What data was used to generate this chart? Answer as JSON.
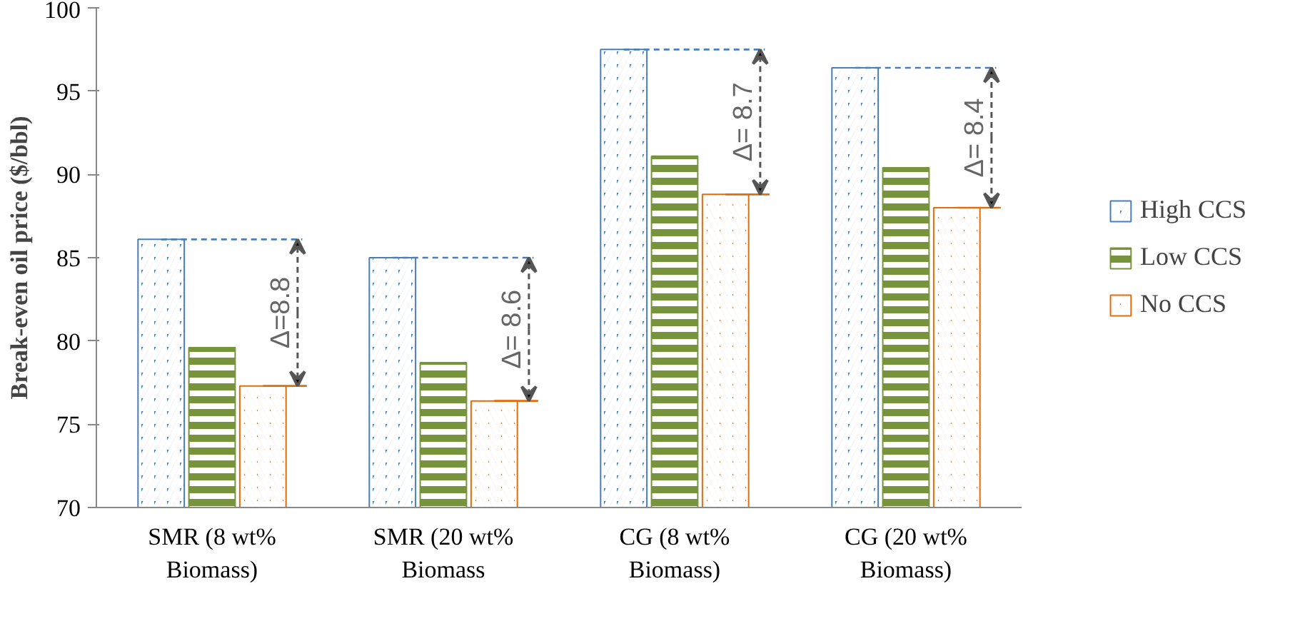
{
  "chart_data": {
    "type": "bar",
    "ylabel": "Break-even oil price ($/bbl)",
    "categories": [
      "SMR (8 wt%\nBiomass)",
      "SMR (20 wt%\nBiomass",
      "CG (8 wt%\nBiomass)",
      "CG (20 wt%\nBiomass)"
    ],
    "series": [
      {
        "name": "High CCS",
        "color": "#4a7ebb",
        "values": [
          86.1,
          85.0,
          97.5,
          96.4
        ]
      },
      {
        "name": "Low CCS",
        "color": "#77933c",
        "values": [
          79.6,
          78.7,
          91.1,
          90.4
        ]
      },
      {
        "name": "No CCS",
        "color": "#e46c0a",
        "values": [
          77.3,
          76.4,
          88.8,
          88.0
        ]
      }
    ],
    "ylim": [
      70,
      100
    ],
    "yticks": [
      70,
      75,
      80,
      85,
      90,
      95,
      100
    ],
    "grid": false,
    "legend": "right",
    "annotations": [
      "Δ=8.8",
      "Δ= 8.6",
      "Δ= 8.7",
      "Δ= 8.4"
    ]
  }
}
